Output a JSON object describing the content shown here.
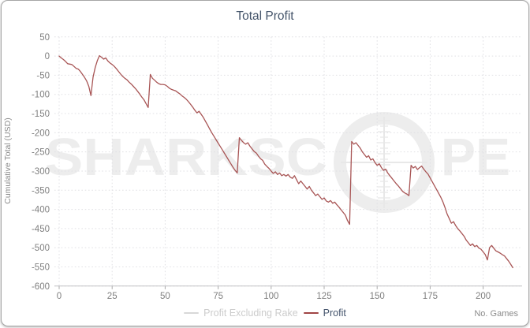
{
  "chart": {
    "title": "Total Profit",
    "y_axis_title": "Cumulative Total (USD)",
    "x_axis_title": "No. Games",
    "legend": [
      {
        "label": "Profit Excluding Rake",
        "dash_color": "#d8d8d8",
        "text_color": "#cccccc"
      },
      {
        "label": "Profit",
        "dash_color": "#a04545",
        "text_color": "#43536b"
      }
    ],
    "watermark": {
      "text": "SHARKSCOPE",
      "part1": "SHARKSC",
      "part2": "PE",
      "color": "#ededed"
    }
  },
  "colors": {
    "title": "#44546a",
    "tick_label": "#7f7f7f",
    "gridline": "#e0e0e4",
    "axis_line": "#c2c2c6",
    "line": "#a85555",
    "border": "#a6a6a6"
  },
  "chart_data": {
    "type": "line",
    "title": "Total Profit",
    "xlabel": "No. Games",
    "ylabel": "Cumulative Total (USD)",
    "xlim": [
      0,
      218
    ],
    "ylim": [
      50,
      -600
    ],
    "x_ticks": [
      0,
      25,
      50,
      75,
      100,
      125,
      150,
      175,
      200
    ],
    "y_ticks": [
      50,
      0,
      -50,
      -100,
      -150,
      -200,
      -250,
      -300,
      -350,
      -400,
      -450,
      -500,
      -550,
      -600
    ],
    "grid": true,
    "legend_position": "bottom",
    "series": [
      {
        "name": "Profit",
        "color": "#a85555",
        "x_start": 0,
        "x_step": 1,
        "values": [
          0,
          -5,
          -9,
          -14,
          -20,
          -21,
          -22,
          -27,
          -32,
          -34,
          -40,
          -48,
          -56,
          -65,
          -79,
          -103,
          -55,
          -30,
          -12,
          1,
          -3,
          -8,
          -5,
          -13,
          -18,
          -22,
          -27,
          -33,
          -40,
          -47,
          -53,
          -58,
          -62,
          -68,
          -73,
          -79,
          -85,
          -92,
          -99,
          -107,
          -114,
          -124,
          -134,
          -48,
          -58,
          -63,
          -68,
          -72,
          -74,
          -74,
          -75,
          -79,
          -84,
          -87,
          -89,
          -91,
          -95,
          -99,
          -104,
          -108,
          -113,
          -119,
          -126,
          -133,
          -141,
          -148,
          -144,
          -152,
          -160,
          -170,
          -180,
          -190,
          -200,
          -209,
          -218,
          -227,
          -236,
          -245,
          -254,
          -263,
          -272,
          -281,
          -290,
          -298,
          -305,
          -213,
          -220,
          -226,
          -230,
          -226,
          -235,
          -242,
          -249,
          -253,
          -261,
          -268,
          -272,
          -282,
          -288,
          -293,
          -300,
          -306,
          -302,
          -309,
          -305,
          -312,
          -309,
          -313,
          -309,
          -316,
          -319,
          -312,
          -323,
          -333,
          -326,
          -333,
          -340,
          -347,
          -340,
          -350,
          -357,
          -364,
          -360,
          -367,
          -374,
          -370,
          -378,
          -381,
          -377,
          -384,
          -381,
          -388,
          -394,
          -401,
          -408,
          -415,
          -429,
          -439,
          -223,
          -230,
          -226,
          -233,
          -240,
          -250,
          -257,
          -264,
          -260,
          -271,
          -268,
          -278,
          -285,
          -281,
          -291,
          -298,
          -295,
          -305,
          -312,
          -319,
          -326,
          -333,
          -339,
          -346,
          -353,
          -357,
          -360,
          -364,
          -285,
          -292,
          -288,
          -296,
          -291,
          -287,
          -295,
          -302,
          -308,
          -318,
          -328,
          -338,
          -348,
          -358,
          -368,
          -380,
          -395,
          -412,
          -424,
          -436,
          -432,
          -442,
          -450,
          -456,
          -463,
          -470,
          -480,
          -487,
          -494,
          -490,
          -497,
          -494,
          -501,
          -504,
          -511,
          -518,
          -532,
          -500,
          -494,
          -501,
          -508,
          -511,
          -514,
          -518,
          -521,
          -528,
          -535,
          -543,
          -552
        ]
      },
      {
        "name": "Profit Excluding Rake",
        "color": "#d8d8d8",
        "visible": false,
        "values": []
      }
    ]
  }
}
